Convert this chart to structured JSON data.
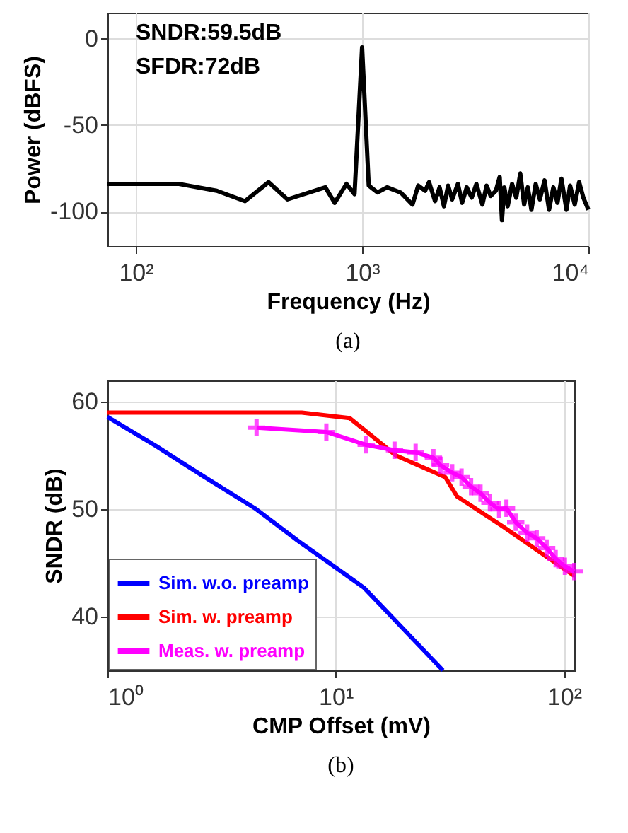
{
  "chart_data": [
    {
      "type": "line",
      "xlabel": "Frequency (Hz)",
      "ylabel": "Power (dBFS)",
      "log": "x",
      "grid": true,
      "marker": "none",
      "line_style": "solid",
      "xlim": [
        75,
        10000
      ],
      "xticks": [
        {
          "value": 100,
          "label": "10²"
        },
        {
          "value": 1000,
          "label": "10³"
        },
        {
          "value": 10000,
          "label": "10⁴"
        }
      ],
      "ylim": [
        -120,
        15
      ],
      "yticks": [
        0,
        -50,
        -100
      ],
      "annotations": [
        "SNDR:59.5dB",
        "SFDR:72dB",
        "(a)"
      ],
      "series": [
        {
          "color": "#000000",
          "x": [
            75,
            155,
            228,
            304,
            386,
            468,
            688,
            757,
            853,
            926,
            1000,
            1070,
            1170,
            1290,
            1480,
            1670,
            1770,
            1900,
            1977,
            2100,
            2200,
            2300,
            2400,
            2500,
            2650,
            2766,
            2900,
            3050,
            3200,
            3400,
            3550,
            3700,
            3900,
            4055,
            4150,
            4250,
            4400,
            4600,
            4800,
            5000,
            5200,
            5400,
            5600,
            5850,
            6100,
            6400,
            6700,
            7000,
            7300,
            7600,
            8000,
            8300,
            8700,
            9100,
            9500,
            10000
          ],
          "values": [
            -84,
            -84,
            -88,
            -94,
            -83,
            -93,
            -86,
            -95,
            -84,
            -90,
            -5,
            -85,
            -89,
            -86,
            -89,
            -96,
            -85,
            -88,
            -83,
            -94,
            -86,
            -97,
            -85,
            -93,
            -84,
            -95,
            -86,
            -92,
            -84,
            -96,
            -85,
            -91,
            -88,
            -80,
            -105,
            -86,
            -97,
            -84,
            -92,
            -78,
            -96,
            -86,
            -99,
            -84,
            -93,
            -82,
            -99,
            -86,
            -95,
            -81,
            -99,
            -85,
            -96,
            -83,
            -92,
            -99
          ]
        }
      ]
    },
    {
      "type": "line",
      "xlabel": "CMP Offset (mV)",
      "ylabel": "SNDR (dB)",
      "log": "x",
      "grid": true,
      "legend": "bottom left",
      "xlim": [
        1,
        111
      ],
      "xticks": [
        {
          "value": 1,
          "label": "10⁰"
        },
        {
          "value": 10,
          "label": "10¹"
        },
        {
          "value": 100,
          "label": "10²"
        }
      ],
      "ylim": [
        35,
        62
      ],
      "yticks": [
        40,
        50,
        60
      ],
      "annotations": [
        "(b)"
      ],
      "series": [
        {
          "name": "Sim. w.o. preamp",
          "color": "#0000ff",
          "marker": "none",
          "x": [
            1,
            1.63,
            2.62,
            4.42,
            6.8,
            13.3,
            29.5
          ],
          "values": [
            58.6,
            55.9,
            53.1,
            50.1,
            47.1,
            42.7,
            35.0
          ]
        },
        {
          "name": "Sim. w. preamp",
          "color": "#ff0000",
          "marker": "none",
          "x": [
            1,
            7.1,
            11.5,
            18.4,
            30.2,
            34,
            54,
            111
          ],
          "values": [
            59.0,
            59.0,
            58.5,
            55.0,
            53.0,
            51.2,
            48.4,
            43.8
          ]
        },
        {
          "name": "Meas. w. preamp",
          "color": "#ff00ff",
          "marker": "cross",
          "x": [
            4.5,
            9.1,
            13.6,
            18.1,
            22.4,
            26.8,
            28.8,
            32.4,
            35.6,
            39.2,
            43.1,
            47.4,
            52,
            56,
            61.5,
            69,
            76,
            84,
            92,
            101,
            111
          ],
          "values": [
            57.6,
            57.2,
            56.0,
            55.5,
            55.3,
            54.8,
            54.1,
            53.4,
            53.0,
            52.1,
            51.5,
            50.6,
            50.0,
            50.1,
            48.8,
            47.8,
            47.3,
            46.4,
            45.4,
            44.7,
            44.2
          ]
        }
      ]
    }
  ]
}
